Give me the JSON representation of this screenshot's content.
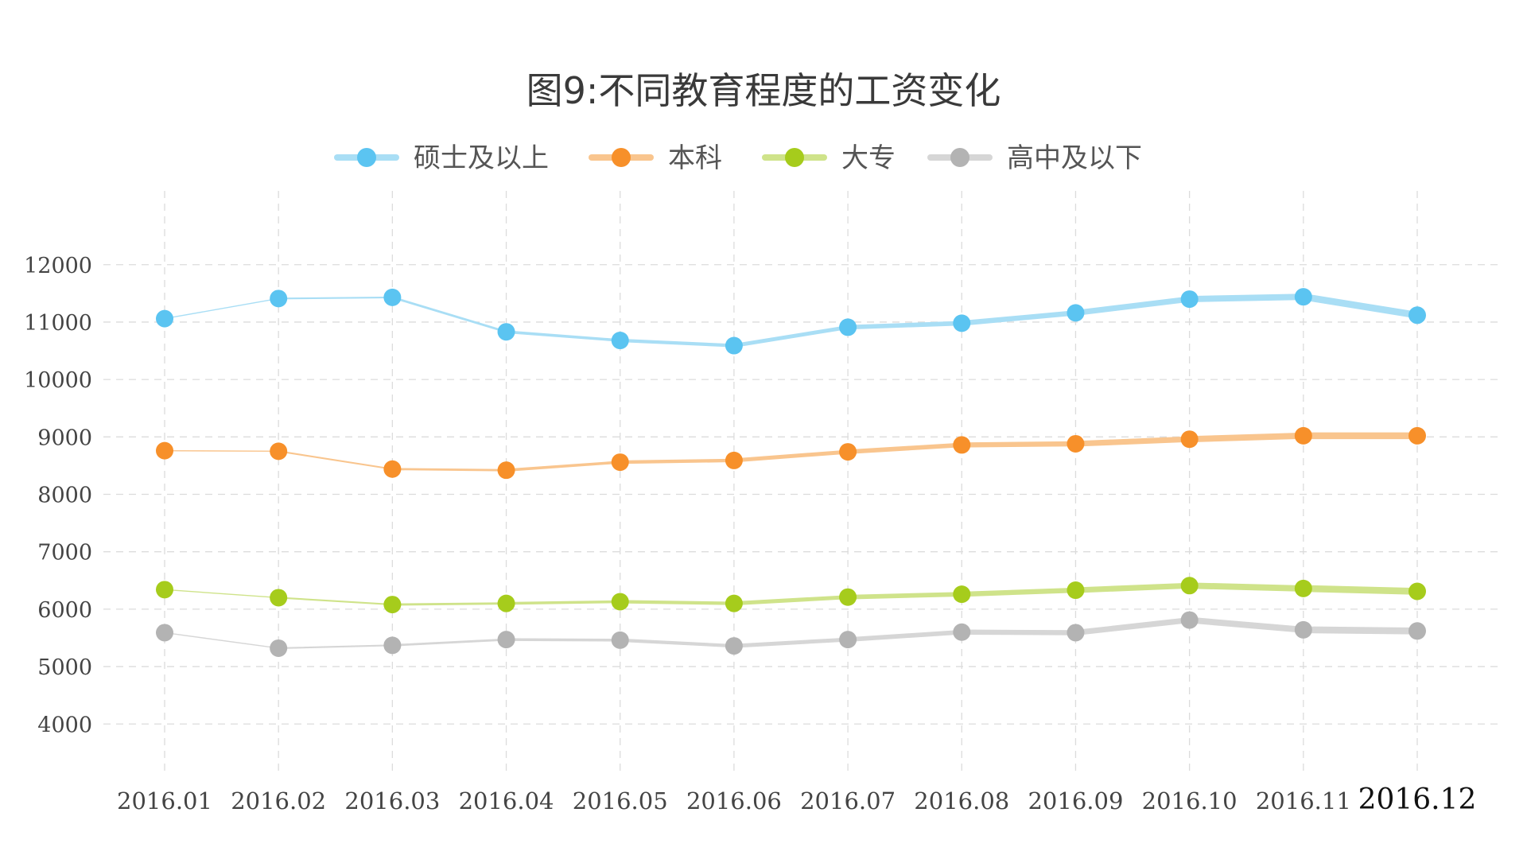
{
  "chart_data": {
    "type": "line",
    "title": "图9:不同教育程度的工资变化",
    "xlabel": "",
    "ylabel": "",
    "categories": [
      "2016.01",
      "2016.02",
      "2016.03",
      "2016.04",
      "2016.05",
      "2016.06",
      "2016.07",
      "2016.08",
      "2016.09",
      "2016.10",
      "2016.11",
      "2016.12"
    ],
    "emphasized_category": "2016.12",
    "ylim": [
      3200,
      12800
    ],
    "yticks": [
      4000,
      5000,
      6000,
      7000,
      8000,
      9000,
      10000,
      11000,
      12000
    ],
    "grid": true,
    "legend_position": "top-center",
    "series": [
      {
        "name": "硕士及以上",
        "color": "#5bc4f1",
        "line_color": "#a9def5",
        "values": [
          11060,
          11410,
          11430,
          10830,
          10680,
          10590,
          10910,
          10980,
          11160,
          11400,
          11440,
          11120
        ]
      },
      {
        "name": "本科",
        "color": "#f7902a",
        "line_color": "#f9c58e",
        "values": [
          8760,
          8750,
          8440,
          8420,
          8560,
          8590,
          8740,
          8860,
          8880,
          8960,
          9020,
          9020
        ]
      },
      {
        "name": "大专",
        "color": "#a6cc1c",
        "line_color": "#cfe38a",
        "values": [
          6340,
          6200,
          6080,
          6100,
          6130,
          6100,
          6210,
          6260,
          6330,
          6410,
          6360,
          6310
        ]
      },
      {
        "name": "高中及以下",
        "color": "#b3b3b3",
        "line_color": "#d6d6d6",
        "values": [
          5590,
          5320,
          5370,
          5470,
          5460,
          5360,
          5470,
          5600,
          5590,
          5810,
          5640,
          5620
        ]
      }
    ]
  }
}
